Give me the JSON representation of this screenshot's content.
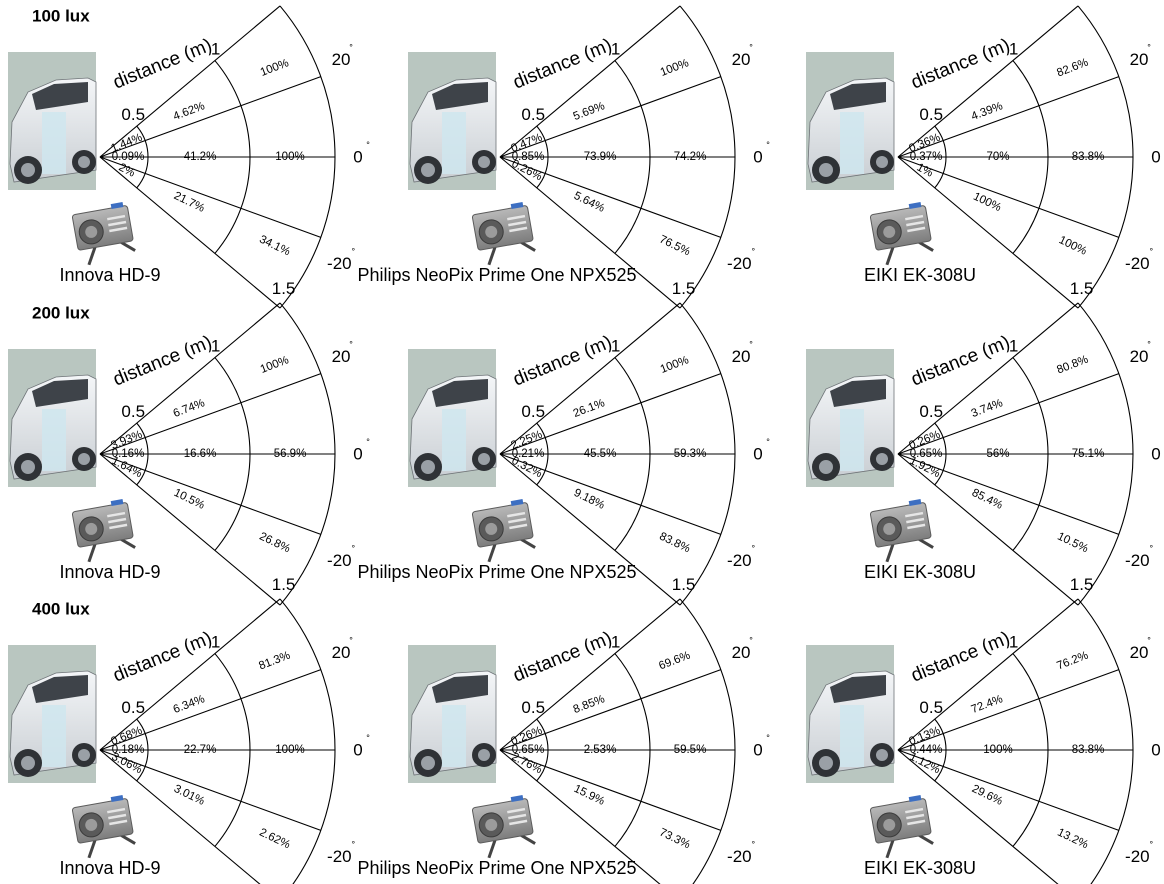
{
  "diagram": {
    "distance_axis_title": "distance (m)",
    "distance_ticks": [
      "0.5",
      "1",
      "1.5"
    ],
    "angle_labels": [
      "20",
      "0",
      "-20"
    ],
    "degree_symbol": "°",
    "panels_rows": [
      {
        "lux_label": "100 lux",
        "devices": [
          {
            "name": "Innova HD-9",
            "ring1": [
              "1.44%",
              "0.09%",
              "2%"
            ],
            "ring2": [
              "4.62%",
              "41.2%",
              "21.7%"
            ],
            "ring3": [
              "100%",
              "100%",
              "34.1%"
            ]
          },
          {
            "name": "Philips NeoPix Prime One NPX525",
            "ring1": [
              "0.47%",
              "0.85%",
              "0.26%"
            ],
            "ring2": [
              "5.69%",
              "73.9%",
              "5.64%"
            ],
            "ring3": [
              "100%",
              "74.2%",
              "76.5%"
            ]
          },
          {
            "name": "EIKI EK-308U",
            "ring1": [
              "0.36%",
              "0.37%",
              "1%"
            ],
            "ring2": [
              "4.39%",
              "70%",
              "100%"
            ],
            "ring3": [
              "82.6%",
              "83.8%",
              "100%"
            ]
          }
        ]
      },
      {
        "lux_label": "200 lux",
        "devices": [
          {
            "name": "Innova HD-9",
            "ring1": [
              "3.93%",
              "0.16%",
              "1.64%"
            ],
            "ring2": [
              "6.74%",
              "16.6%",
              "10.5%"
            ],
            "ring3": [
              "100%",
              "56.9%",
              "26.8%"
            ]
          },
          {
            "name": "Philips NeoPix Prime One NPX525",
            "ring1": [
              "2.25%",
              "0.21%",
              "0.32%"
            ],
            "ring2": [
              "26.1%",
              "45.5%",
              "9.18%"
            ],
            "ring3": [
              "100%",
              "59.3%",
              "83.8%"
            ]
          },
          {
            "name": "EIKI EK-308U",
            "ring1": [
              "0.26%",
              "0.65%",
              "1.92%"
            ],
            "ring2": [
              "3.74%",
              "56%",
              "85.4%"
            ],
            "ring3": [
              "80.8%",
              "75.1%",
              "10.5%"
            ]
          }
        ]
      },
      {
        "lux_label": "400 lux",
        "devices": [
          {
            "name": "Innova HD-9",
            "ring1": [
              "0.68%",
              "0.18%",
              "3.06%"
            ],
            "ring2": [
              "6.34%",
              "22.7%",
              "3.01%"
            ],
            "ring3": [
              "81.3%",
              "100%",
              "2.62%"
            ]
          },
          {
            "name": "Philips NeoPix Prime One NPX525",
            "ring1": [
              "0.26%",
              "0.65%",
              "2.76%"
            ],
            "ring2": [
              "8.85%",
              "2.53%",
              "15.9%"
            ],
            "ring3": [
              "69.6%",
              "59.5%",
              "73.3%"
            ]
          },
          {
            "name": "EIKI EK-308U",
            "ring1": [
              "0.13%",
              "0.44%",
              "1.12%"
            ],
            "ring2": [
              "72.4%",
              "100%",
              "29.6%"
            ],
            "ring3": [
              "76.2%",
              "83.8%",
              "13.2%"
            ]
          }
        ]
      }
    ]
  }
}
